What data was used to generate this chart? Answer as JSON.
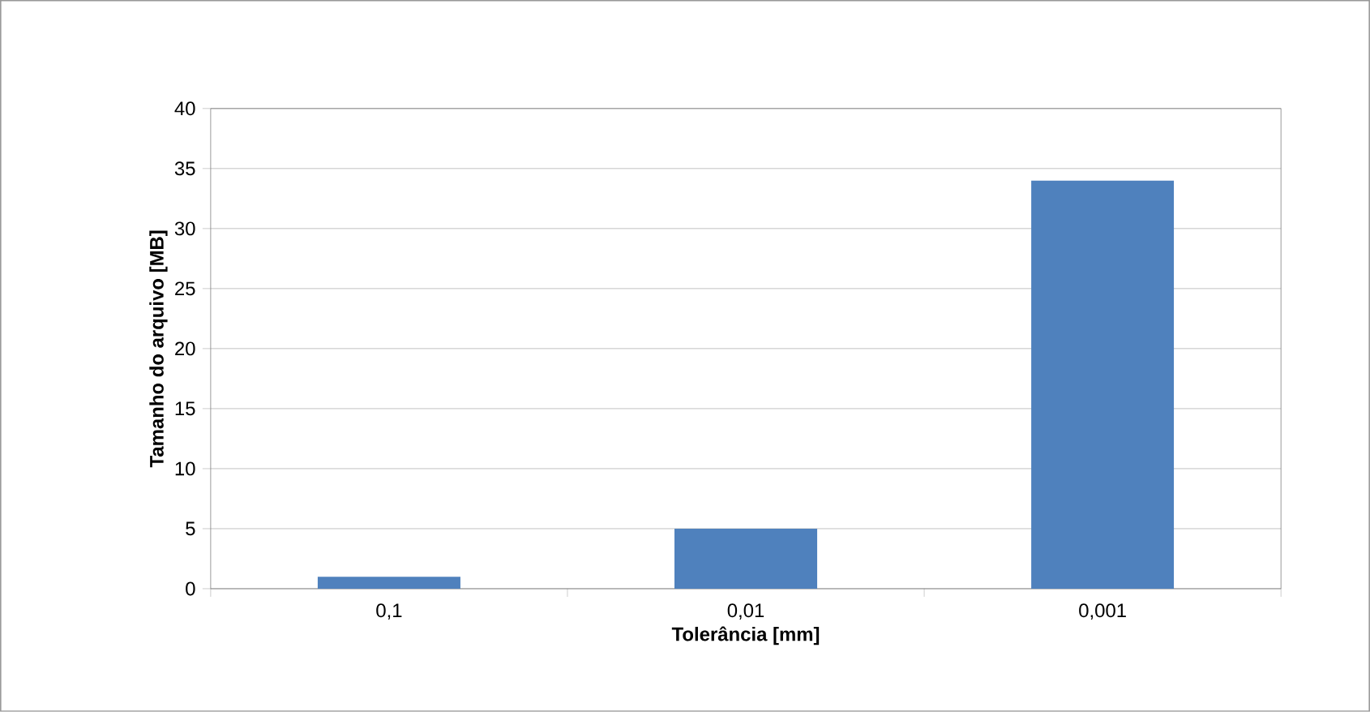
{
  "chart_data": {
    "type": "bar",
    "xlabel": "Tolerância [mm]",
    "ylabel": "Tamanho do arquivo [MB]",
    "categories": [
      "0,1",
      "0,01",
      "0,001"
    ],
    "values": [
      1,
      5,
      34
    ],
    "color": "#4f81bd",
    "ylim": [
      0,
      40
    ],
    "yticks": [
      0,
      5,
      10,
      15,
      20,
      25,
      30,
      35,
      40
    ],
    "grid": "y"
  }
}
